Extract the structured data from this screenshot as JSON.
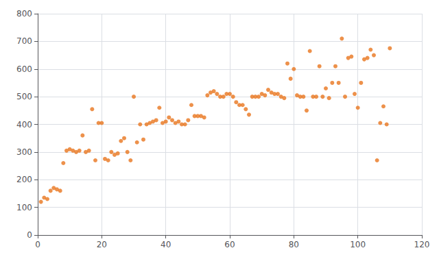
{
  "chart_data": {
    "type": "scatter",
    "x": [
      1,
      2,
      3,
      4,
      5,
      6,
      7,
      8,
      9,
      10,
      11,
      12,
      13,
      14,
      15,
      16,
      17,
      18,
      19,
      20,
      21,
      22,
      23,
      24,
      25,
      26,
      27,
      28,
      29,
      30,
      31,
      32,
      33,
      34,
      35,
      36,
      37,
      38,
      39,
      40,
      41,
      42,
      43,
      44,
      45,
      46,
      47,
      48,
      49,
      50,
      51,
      52,
      53,
      54,
      55,
      56,
      57,
      58,
      59,
      60,
      61,
      62,
      63,
      64,
      65,
      66,
      67,
      68,
      69,
      70,
      71,
      72,
      73,
      74,
      75,
      76,
      77,
      78,
      79,
      80,
      81,
      82,
      83,
      84,
      85,
      86,
      87,
      88,
      89,
      90,
      91,
      92,
      93,
      94,
      95,
      96,
      97,
      98,
      99,
      100,
      101,
      102,
      103,
      104,
      105,
      106,
      107,
      108,
      109,
      110
    ],
    "values": [
      120,
      135,
      130,
      160,
      170,
      165,
      160,
      260,
      305,
      310,
      305,
      300,
      305,
      360,
      300,
      305,
      455,
      270,
      405,
      405,
      275,
      270,
      300,
      290,
      295,
      340,
      350,
      300,
      270,
      500,
      335,
      400,
      345,
      400,
      405,
      410,
      415,
      460,
      405,
      410,
      425,
      415,
      405,
      410,
      400,
      400,
      415,
      470,
      430,
      430,
      430,
      425,
      505,
      515,
      520,
      510,
      500,
      500,
      510,
      510,
      500,
      480,
      470,
      470,
      455,
      435,
      500,
      500,
      500,
      510,
      505,
      525,
      515,
      510,
      510,
      500,
      495,
      620,
      565,
      600,
      505,
      500,
      500,
      450,
      665,
      500,
      500,
      610,
      500,
      530,
      495,
      550,
      610,
      550,
      710,
      500,
      640,
      645,
      510,
      460,
      550,
      635,
      640,
      670,
      650,
      270,
      405,
      465,
      400,
      675
    ],
    "color": "#E8761E",
    "marker": "circle",
    "xlim": [
      0,
      120
    ],
    "ylim": [
      0,
      800
    ],
    "xticks": [
      0,
      20,
      40,
      60,
      80,
      100,
      120
    ],
    "yticks": [
      0,
      100,
      200,
      300,
      400,
      500,
      600,
      700,
      800
    ],
    "grid": true
  }
}
